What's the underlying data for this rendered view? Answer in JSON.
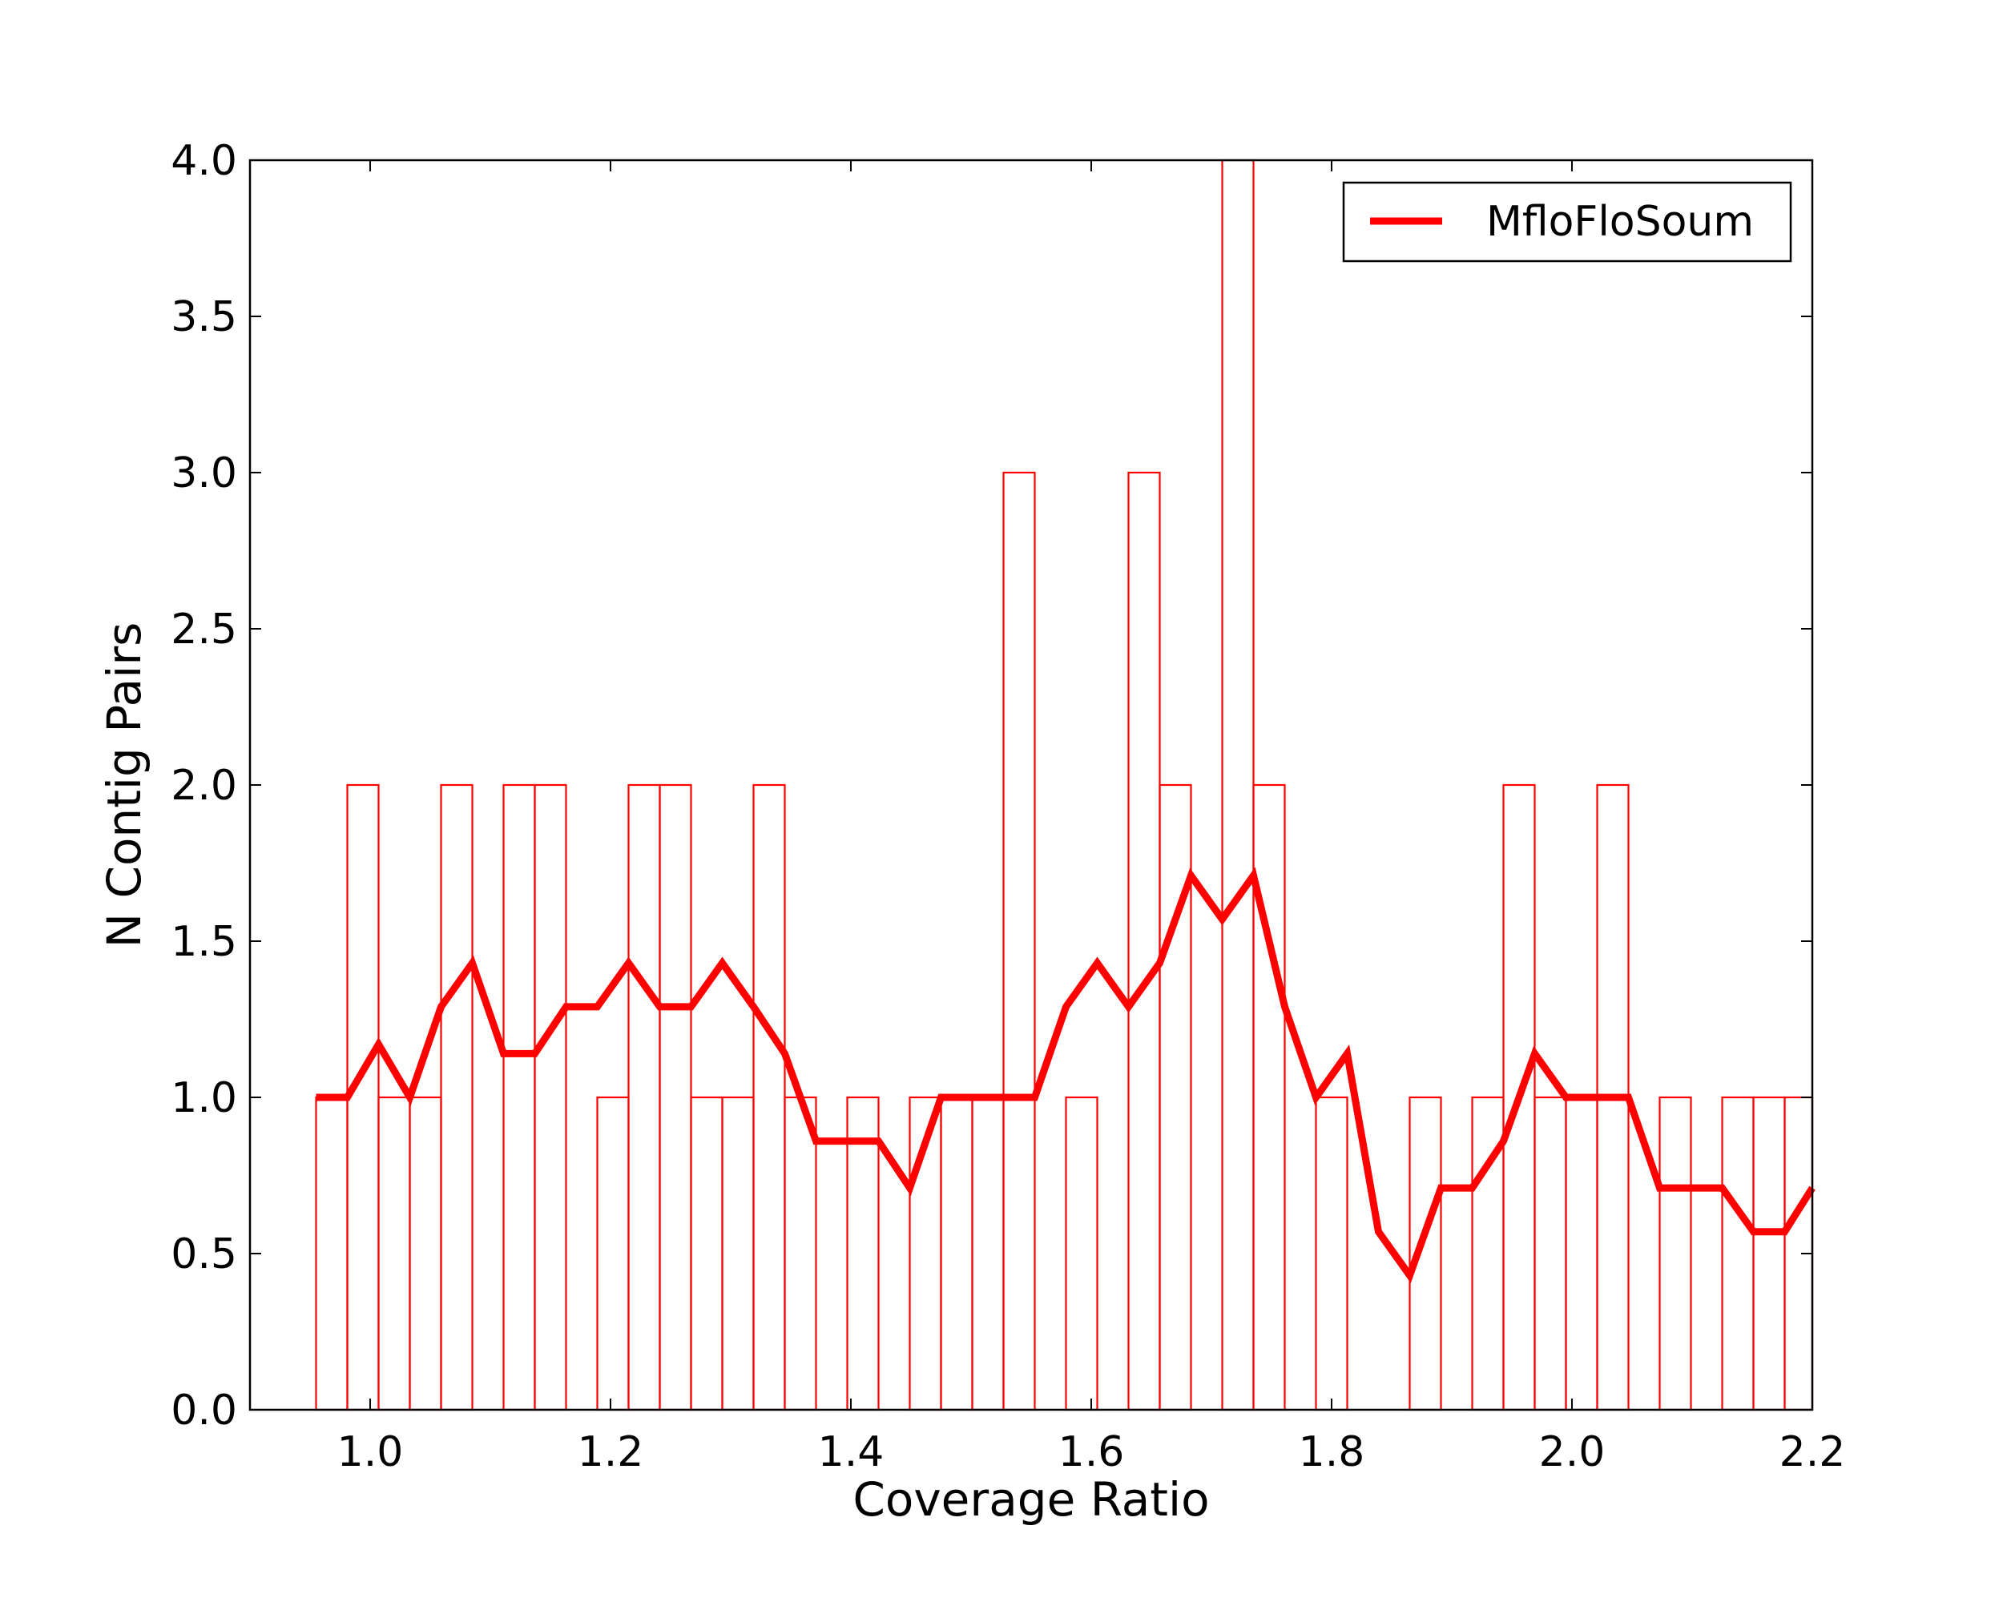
{
  "chart_data": {
    "type": "line",
    "title": "",
    "xlabel": "Coverage Ratio",
    "ylabel": "N Contig Pairs",
    "xlim": [
      0.9,
      2.2
    ],
    "ylim": [
      0.0,
      4.0
    ],
    "x_ticks": [
      "1.0",
      "1.2",
      "1.4",
      "1.6",
      "1.8",
      "2.0",
      "2.2"
    ],
    "y_ticks": [
      "0.0",
      "0.5",
      "1.0",
      "1.5",
      "2.0",
      "2.5",
      "3.0",
      "3.5",
      "4.0"
    ],
    "grid": false,
    "legend": {
      "placement": "top-right",
      "entries": [
        "MfloFloSoum"
      ]
    },
    "color": "#ff0000",
    "histogram": {
      "bin_edges": [
        0.955,
        0.981,
        1.007,
        1.033,
        1.059,
        1.085,
        1.111,
        1.137,
        1.163,
        1.189,
        1.215,
        1.241,
        1.267,
        1.293,
        1.319,
        1.345,
        1.371,
        1.397,
        1.423,
        1.449,
        1.475,
        1.501,
        1.527,
        1.553,
        1.579,
        1.605,
        1.631,
        1.657,
        1.683,
        1.709,
        1.735,
        1.761,
        1.787,
        1.813,
        1.839,
        1.865,
        1.891,
        1.917,
        1.943,
        1.969,
        1.995,
        2.021,
        2.047,
        2.073,
        2.099,
        2.125,
        2.151,
        2.177,
        2.2
      ],
      "counts": [
        1,
        2,
        1,
        1,
        2,
        0,
        2,
        2,
        0,
        1,
        2,
        2,
        1,
        1,
        2,
        1,
        0,
        1,
        0,
        1,
        1,
        1,
        3,
        0,
        1,
        0,
        3,
        2,
        0,
        4,
        2,
        0,
        1,
        0,
        0,
        1,
        0,
        1,
        2,
        1,
        1,
        2,
        0,
        1,
        0,
        1,
        1,
        1
      ]
    },
    "series": [
      {
        "name": "MfloFloSoum",
        "x": [
          0.955,
          0.981,
          1.007,
          1.033,
          1.059,
          1.085,
          1.111,
          1.137,
          1.163,
          1.189,
          1.215,
          1.241,
          1.267,
          1.293,
          1.319,
          1.345,
          1.371,
          1.397,
          1.423,
          1.449,
          1.475,
          1.501,
          1.527,
          1.553,
          1.579,
          1.605,
          1.631,
          1.657,
          1.683,
          1.709,
          1.735,
          1.761,
          1.787,
          1.813,
          1.839,
          1.865,
          1.891,
          1.917,
          1.943,
          1.969,
          1.995,
          2.021,
          2.047,
          2.073,
          2.099,
          2.125,
          2.151,
          2.177,
          2.2
        ],
        "y": [
          1.0,
          1.0,
          1.17,
          1.0,
          1.29,
          1.43,
          1.14,
          1.14,
          1.29,
          1.29,
          1.43,
          1.29,
          1.29,
          1.43,
          1.29,
          1.14,
          0.86,
          0.86,
          0.86,
          0.71,
          1.0,
          1.0,
          1.0,
          1.0,
          1.29,
          1.43,
          1.29,
          1.43,
          1.71,
          1.57,
          1.71,
          1.29,
          1.0,
          1.14,
          0.57,
          0.43,
          0.71,
          0.71,
          0.86,
          1.14,
          1.0,
          1.0,
          1.0,
          0.71,
          0.71,
          0.71,
          0.57,
          0.57,
          0.71
        ]
      }
    ]
  }
}
